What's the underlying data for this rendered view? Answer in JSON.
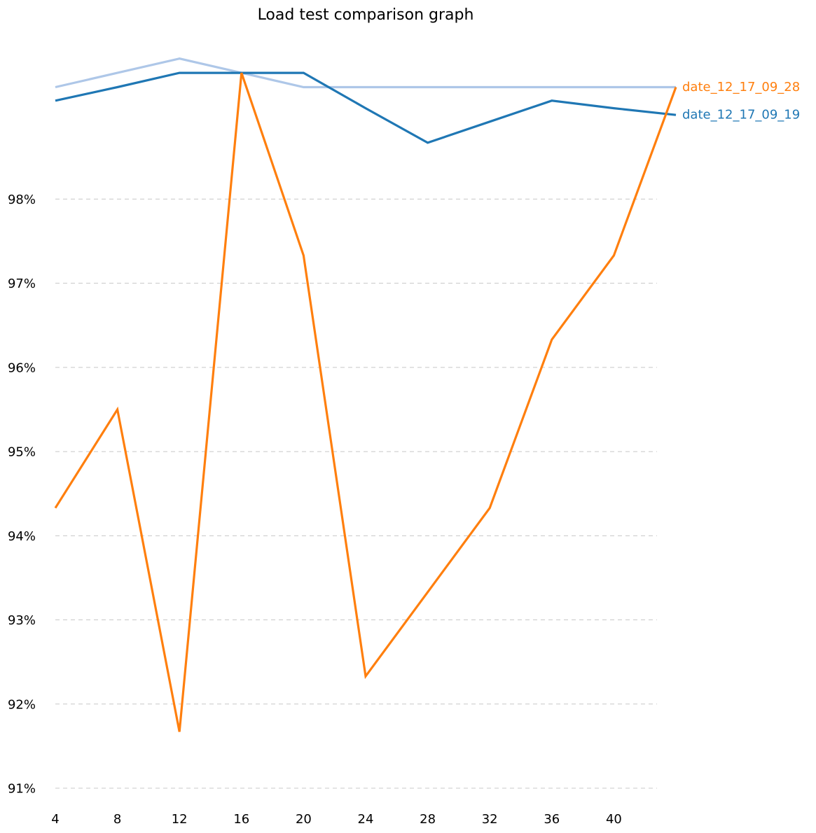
{
  "chart_data": {
    "type": "line",
    "title": "Load test comparison graph",
    "xlabel": "",
    "ylabel": "",
    "x": [
      4,
      8,
      12,
      16,
      20,
      24,
      28,
      32,
      36,
      40,
      44
    ],
    "x_ticks": [
      4,
      8,
      12,
      16,
      20,
      24,
      28,
      32,
      36,
      40
    ],
    "x_tick_labels": [
      "4",
      "8",
      "12",
      "16",
      "20",
      "24",
      "28",
      "32",
      "36",
      "40"
    ],
    "xlim": [
      4,
      44
    ],
    "ylim": [
      91,
      99.9
    ],
    "y_ticks": [
      91,
      92,
      93,
      94,
      95,
      96,
      97,
      98
    ],
    "y_tick_labels": [
      "91%",
      "92%",
      "93%",
      "94%",
      "95%",
      "96%",
      "97%",
      "98%"
    ],
    "grid": "horizontal dashed",
    "legend": "inline labels at right end of lines",
    "series": [
      {
        "name": "",
        "color": "#aec7e8",
        "values": [
          99.33,
          99.5,
          99.67,
          99.5,
          99.33,
          99.33,
          99.33,
          99.33,
          99.33,
          99.33,
          99.33
        ]
      },
      {
        "name": "date_12_17_09_19",
        "color": "#1f77b4",
        "values": [
          99.17,
          99.33,
          99.5,
          99.5,
          99.5,
          99.08,
          98.67,
          98.92,
          99.17,
          99.08,
          99.0
        ]
      },
      {
        "name": "date_12_17_09_28",
        "color": "#ff7f0e",
        "values": [
          94.33,
          95.5,
          91.67,
          99.5,
          97.33,
          92.33,
          93.33,
          94.33,
          96.33,
          97.33,
          99.33
        ]
      }
    ]
  }
}
